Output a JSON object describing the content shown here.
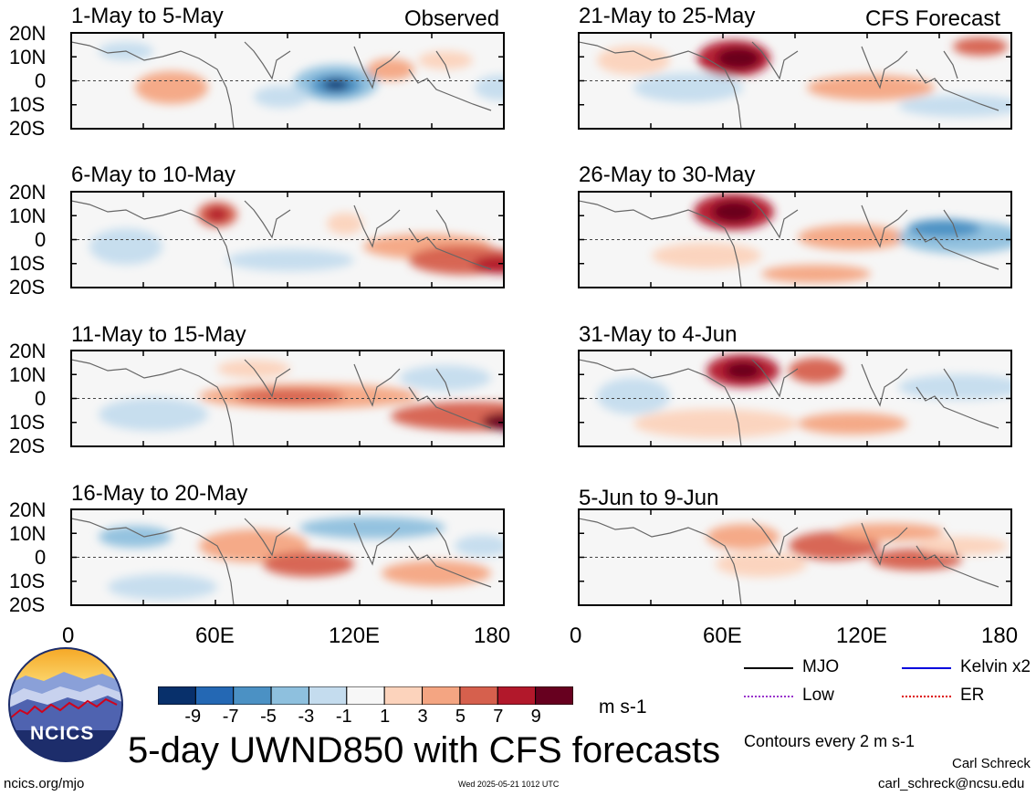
{
  "main_title": "5-day UWND850 with CFS forecasts",
  "observed_label": "Observed",
  "forecast_label": "CFS Forecast",
  "lat_ticks": [
    "20N",
    "10N",
    "0",
    "10S",
    "20S"
  ],
  "lon_ticks": [
    "0",
    "60E",
    "120E",
    "180"
  ],
  "colorbar": {
    "labels": [
      "-9",
      "-7",
      "-5",
      "-3",
      "-1",
      "1",
      "3",
      "5",
      "7",
      "9"
    ],
    "colors": [
      "#08306b",
      "#2468b4",
      "#4b91c4",
      "#8ec0de",
      "#c4dcee",
      "#f7f7f7",
      "#fcd3bc",
      "#f4a582",
      "#d6604d",
      "#b2182b",
      "#67001f"
    ],
    "units": "m s-1"
  },
  "legend": {
    "items": [
      {
        "label": "MJO",
        "color": "#000000"
      },
      {
        "label": "Kelvin x2",
        "color": "#0000dd"
      },
      {
        "label": "Low",
        "color": "#9933cc"
      },
      {
        "label": "ER",
        "color": "#dd0000"
      }
    ],
    "contour_note": "Contours every 2 m s-1"
  },
  "logo_text": "NCICS",
  "footer": {
    "url": "ncics.org/mjo",
    "timestamp": "Wed 2025-05-21 1012 UTC",
    "author": "Carl Schreck",
    "email": "carl_schreck@ncsu.edu"
  },
  "chart_data": [
    {
      "type": "heatmap",
      "title": "1-May to 5-May",
      "source": "Observed"
    },
    {
      "type": "heatmap",
      "title": "6-May to 10-May",
      "source": "Observed"
    },
    {
      "type": "heatmap",
      "title": "11-May to 15-May",
      "source": "Observed"
    },
    {
      "type": "heatmap",
      "title": "16-May to 20-May",
      "source": "Observed"
    },
    {
      "type": "heatmap",
      "title": "21-May to 25-May",
      "source": "CFS Forecast"
    },
    {
      "type": "heatmap",
      "title": "26-May to 30-May",
      "source": "CFS Forecast"
    },
    {
      "type": "heatmap",
      "title": "31-May to 4-Jun",
      "source": "CFS Forecast"
    },
    {
      "type": "heatmap",
      "title": "5-Jun to 9-Jun",
      "source": "CFS Forecast"
    }
  ]
}
